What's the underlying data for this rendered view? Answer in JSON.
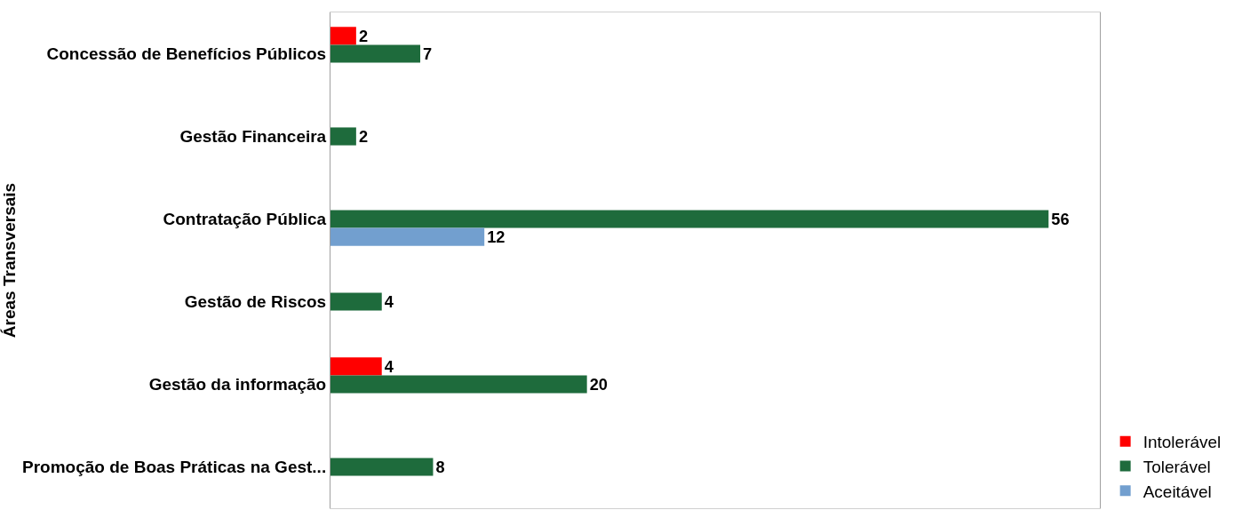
{
  "chart_data": {
    "type": "bar",
    "orientation": "horizontal",
    "ylabel": "Áreas Transversais",
    "categories": [
      "Concessão de Benefícios Públicos",
      "Gestão Financeira",
      "Contratação Pública",
      "Gestão de Riscos",
      "Gestão da informação",
      "Promoção de Boas Práticas na Gest..."
    ],
    "series": [
      {
        "name": "Intolerável",
        "color": "#ff0000",
        "values": [
          2,
          null,
          null,
          null,
          4,
          null
        ]
      },
      {
        "name": "Tolerável",
        "color": "#1e6b3c",
        "values": [
          7,
          2,
          56,
          4,
          20,
          8
        ]
      },
      {
        "name": "Aceitável",
        "color": "#729fcf",
        "values": [
          null,
          null,
          12,
          null,
          null,
          null
        ]
      }
    ],
    "xlim": [
      0,
      60
    ],
    "tick_labels": "y",
    "data_labels": true,
    "grid": false,
    "legend": "bottom right"
  }
}
